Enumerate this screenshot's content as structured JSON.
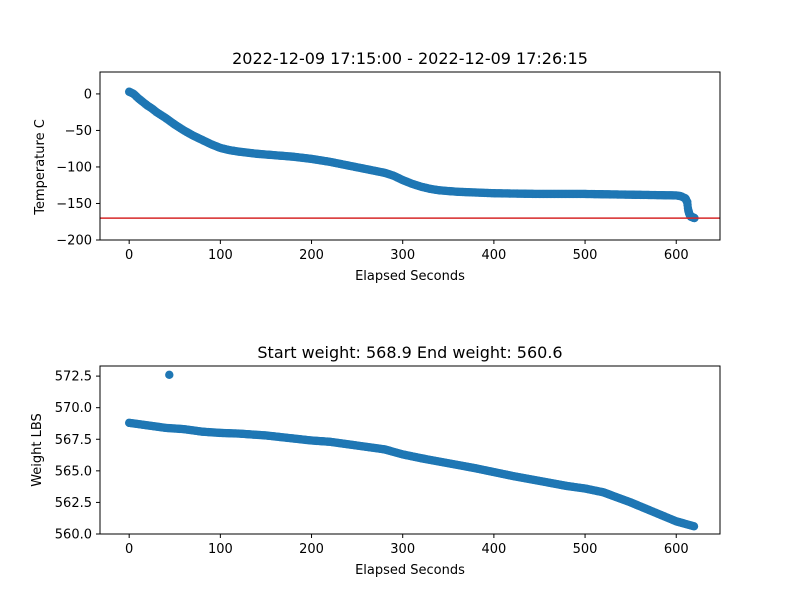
{
  "chart_data": [
    {
      "type": "scatter",
      "title": "2022-12-09 17:15:00 - 2022-12-09 17:26:15",
      "xlabel": "Elapsed Seconds",
      "ylabel": "Temperature C",
      "xlim": [
        -32,
        648
      ],
      "ylim": [
        -200,
        30
      ],
      "xticks": [
        0,
        100,
        200,
        300,
        400,
        500,
        600
      ],
      "yticks": [
        -200,
        -150,
        -100,
        -50,
        0
      ],
      "ytick_labels": [
        "−200",
        "−150",
        "−100",
        "−50",
        "0"
      ],
      "marker_color": "#1f77b4",
      "reference_line": {
        "y": -170,
        "color": "#d62728"
      },
      "series_key": [
        [
          0,
          3
        ],
        [
          5,
          0
        ],
        [
          10,
          -6
        ],
        [
          15,
          -11
        ],
        [
          20,
          -16
        ],
        [
          25,
          -20
        ],
        [
          30,
          -25
        ],
        [
          40,
          -33
        ],
        [
          50,
          -42
        ],
        [
          60,
          -50
        ],
        [
          70,
          -57
        ],
        [
          80,
          -63
        ],
        [
          90,
          -69
        ],
        [
          100,
          -74
        ],
        [
          110,
          -77
        ],
        [
          120,
          -79
        ],
        [
          140,
          -82
        ],
        [
          160,
          -84
        ],
        [
          180,
          -86
        ],
        [
          200,
          -89
        ],
        [
          220,
          -93
        ],
        [
          240,
          -98
        ],
        [
          260,
          -103
        ],
        [
          280,
          -108
        ],
        [
          290,
          -112
        ],
        [
          300,
          -118
        ],
        [
          310,
          -123
        ],
        [
          320,
          -127
        ],
        [
          330,
          -130
        ],
        [
          340,
          -132
        ],
        [
          360,
          -134
        ],
        [
          380,
          -135
        ],
        [
          400,
          -136
        ],
        [
          450,
          -137
        ],
        [
          500,
          -137
        ],
        [
          550,
          -138
        ],
        [
          600,
          -139
        ],
        [
          605,
          -140
        ],
        [
          610,
          -143
        ],
        [
          612,
          -148
        ],
        [
          613,
          -158
        ],
        [
          614,
          -163
        ],
        [
          615,
          -166
        ],
        [
          616,
          -168
        ],
        [
          618,
          -169
        ],
        [
          620,
          -170
        ]
      ]
    },
    {
      "type": "scatter",
      "title": "Start weight: 568.9 End weight: 560.6",
      "xlabel": "Elapsed Seconds",
      "ylabel": "Weight LBS",
      "xlim": [
        -32,
        648
      ],
      "ylim": [
        560.0,
        573.3
      ],
      "xticks": [
        0,
        100,
        200,
        300,
        400,
        500,
        600
      ],
      "yticks": [
        560.0,
        562.5,
        565.0,
        567.5,
        570.0,
        572.5
      ],
      "ytick_labels": [
        "560.0",
        "562.5",
        "565.0",
        "567.5",
        "570.0",
        "572.5"
      ],
      "marker_color": "#1f77b4",
      "outliers": [
        [
          44,
          572.6
        ]
      ],
      "series_key": [
        [
          0,
          568.8
        ],
        [
          10,
          568.7
        ],
        [
          20,
          568.6
        ],
        [
          40,
          568.4
        ],
        [
          60,
          568.3
        ],
        [
          80,
          568.1
        ],
        [
          100,
          568.0
        ],
        [
          120,
          567.95
        ],
        [
          150,
          567.8
        ],
        [
          200,
          567.4
        ],
        [
          220,
          567.3
        ],
        [
          250,
          567.0
        ],
        [
          280,
          566.7
        ],
        [
          300,
          566.3
        ],
        [
          320,
          566.0
        ],
        [
          350,
          565.6
        ],
        [
          380,
          565.2
        ],
        [
          400,
          564.9
        ],
        [
          420,
          564.6
        ],
        [
          450,
          564.2
        ],
        [
          480,
          563.8
        ],
        [
          500,
          563.6
        ],
        [
          520,
          563.3
        ],
        [
          550,
          562.5
        ],
        [
          580,
          561.6
        ],
        [
          600,
          561.0
        ],
        [
          620,
          560.6
        ]
      ]
    }
  ]
}
